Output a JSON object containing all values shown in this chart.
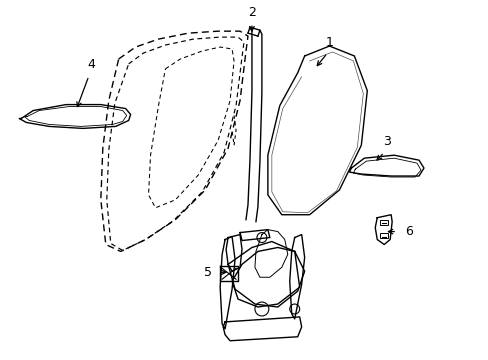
{
  "bg_color": "#ffffff",
  "lc": "#000000",
  "figsize": [
    4.89,
    3.6
  ],
  "dpi": 100,
  "xlim": [
    0,
    489
  ],
  "ylim": [
    0,
    360
  ]
}
